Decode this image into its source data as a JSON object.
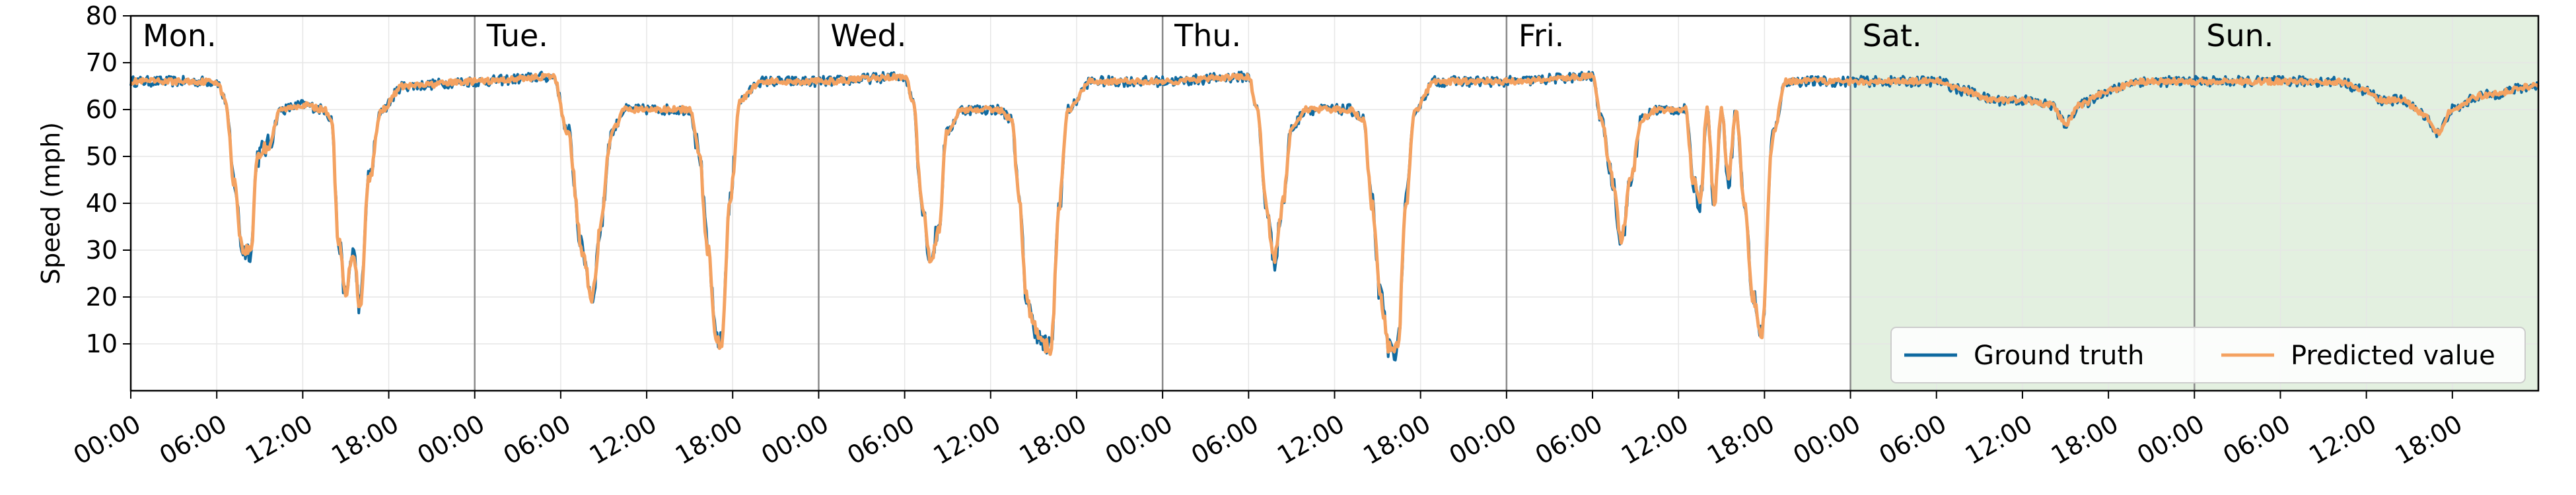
{
  "chart_data": {
    "type": "line",
    "title": "",
    "xlabel": "",
    "ylabel": "Speed (mph)",
    "ylim": [
      0,
      80
    ],
    "yticks": [
      10,
      20,
      30,
      40,
      50,
      60,
      70,
      80
    ],
    "xlim_hours": [
      0,
      168
    ],
    "x_tick_labels": [
      "00:00",
      "06:00",
      "12:00",
      "18:00",
      "00:00",
      "06:00",
      "12:00",
      "18:00",
      "00:00",
      "06:00",
      "12:00",
      "18:00",
      "00:00",
      "06:00",
      "12:00",
      "18:00",
      "00:00",
      "06:00",
      "12:00",
      "18:00",
      "00:00",
      "06:00",
      "12:00",
      "18:00",
      "00:00",
      "06:00",
      "12:00",
      "18:00"
    ],
    "days": [
      "Mon.",
      "Tue.",
      "Wed.",
      "Thu.",
      "Fri.",
      "Sat.",
      "Sun."
    ],
    "weekend_shading_color": "#e3f0e0",
    "grid": true,
    "legend_position": "bottom-right",
    "series": [
      {
        "name": "Ground truth",
        "color": "#0f6aa0"
      },
      {
        "name": "Predicted value",
        "color": "#f4a261"
      }
    ],
    "daily_profiles": [
      {
        "day": "Mon.",
        "points": [
          [
            0,
            66
          ],
          [
            6,
            66
          ],
          [
            6.6,
            62
          ],
          [
            7.2,
            45
          ],
          [
            7.8,
            30
          ],
          [
            8.4,
            30
          ],
          [
            8.8,
            50
          ],
          [
            9.5,
            52
          ],
          [
            10.5,
            60
          ],
          [
            12,
            61
          ],
          [
            13.5,
            60
          ],
          [
            14,
            58
          ],
          [
            14.5,
            32
          ],
          [
            15,
            20
          ],
          [
            15.5,
            30
          ],
          [
            16,
            18
          ],
          [
            16.6,
            45
          ],
          [
            17.5,
            60
          ],
          [
            19,
            65
          ],
          [
            24,
            66
          ]
        ]
      },
      {
        "day": "Tue.",
        "points": [
          [
            0,
            66
          ],
          [
            5.5,
            67
          ],
          [
            6.5,
            55
          ],
          [
            7.5,
            30
          ],
          [
            8.2,
            20
          ],
          [
            8.8,
            35
          ],
          [
            9.5,
            55
          ],
          [
            10.5,
            60
          ],
          [
            13,
            60
          ],
          [
            15,
            60
          ],
          [
            15.6,
            52
          ],
          [
            16.3,
            30
          ],
          [
            16.8,
            12
          ],
          [
            17.2,
            10
          ],
          [
            17.8,
            40
          ],
          [
            18.5,
            62
          ],
          [
            20,
            66
          ],
          [
            24,
            66
          ]
        ]
      },
      {
        "day": "Wed.",
        "points": [
          [
            0,
            66
          ],
          [
            6,
            67
          ],
          [
            6.6,
            62
          ],
          [
            7.2,
            40
          ],
          [
            7.8,
            28
          ],
          [
            8.4,
            35
          ],
          [
            8.9,
            55
          ],
          [
            10,
            60
          ],
          [
            12.5,
            60
          ],
          [
            13.5,
            58
          ],
          [
            14,
            40
          ],
          [
            14.5,
            20
          ],
          [
            15,
            14
          ],
          [
            15.6,
            10
          ],
          [
            16.2,
            9
          ],
          [
            16.8,
            40
          ],
          [
            17.4,
            60
          ],
          [
            19,
            66
          ],
          [
            24,
            66
          ]
        ]
      },
      {
        "day": "Thu.",
        "points": [
          [
            0,
            66
          ],
          [
            6,
            67
          ],
          [
            6.6,
            60
          ],
          [
            7.2,
            40
          ],
          [
            7.8,
            28
          ],
          [
            8.4,
            40
          ],
          [
            9,
            56
          ],
          [
            10,
            60
          ],
          [
            13,
            60
          ],
          [
            14,
            58
          ],
          [
            14.6,
            40
          ],
          [
            15.2,
            20
          ],
          [
            15.8,
            9
          ],
          [
            16.4,
            9
          ],
          [
            17,
            40
          ],
          [
            17.6,
            60
          ],
          [
            19,
            66
          ],
          [
            24,
            66
          ]
        ]
      },
      {
        "day": "Fri.",
        "points": [
          [
            0,
            66
          ],
          [
            6,
            67
          ],
          [
            6.6,
            58
          ],
          [
            7.4,
            45
          ],
          [
            8,
            32
          ],
          [
            8.7,
            45
          ],
          [
            9.4,
            58
          ],
          [
            10.5,
            60
          ],
          [
            12.5,
            60
          ],
          [
            13,
            45
          ],
          [
            13.5,
            40
          ],
          [
            14,
            60
          ],
          [
            14.5,
            40
          ],
          [
            15,
            60
          ],
          [
            15.5,
            45
          ],
          [
            16,
            60
          ],
          [
            16.6,
            40
          ],
          [
            17.2,
            20
          ],
          [
            17.8,
            12
          ],
          [
            18.6,
            55
          ],
          [
            19.5,
            66
          ],
          [
            24,
            66
          ]
        ]
      },
      {
        "day": "Sat.",
        "points": [
          [
            0,
            66
          ],
          [
            6,
            66
          ],
          [
            8,
            64
          ],
          [
            10,
            62
          ],
          [
            12,
            62
          ],
          [
            14,
            61
          ],
          [
            15,
            57
          ],
          [
            16,
            61
          ],
          [
            18,
            64
          ],
          [
            20,
            66
          ],
          [
            24,
            66
          ]
        ]
      },
      {
        "day": "Sun.",
        "points": [
          [
            0,
            66
          ],
          [
            6,
            66
          ],
          [
            10,
            66
          ],
          [
            12,
            64
          ],
          [
            13,
            62
          ],
          [
            14.5,
            62
          ],
          [
            16,
            59
          ],
          [
            17,
            55
          ],
          [
            18,
            60
          ],
          [
            20,
            63
          ],
          [
            24,
            65
          ]
        ]
      }
    ]
  }
}
